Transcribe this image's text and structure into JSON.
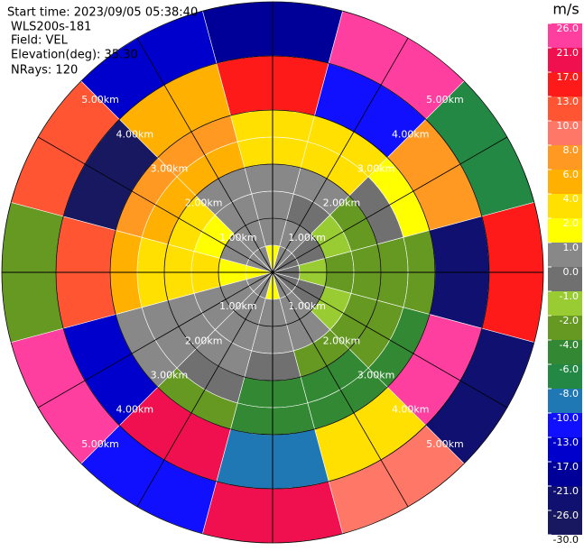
{
  "header": [
    "Start time: 2023/09/05 05:38:40",
    "WLS200s-181",
    "Field: VEL",
    "Elevation(deg): 35.30",
    "NRays: 120"
  ],
  "rings": [
    {
      "range": 1,
      "label": "1.00km"
    },
    {
      "range": 2,
      "label": "2.00km"
    },
    {
      "range": 3,
      "label": "3.00km"
    },
    {
      "range": 4,
      "label": "4.00km"
    },
    {
      "range": 5,
      "label": "5.00km"
    }
  ],
  "colorbar": {
    "unit": "m/s",
    "ticks": [
      {
        "value": 26,
        "label": "26.0"
      },
      {
        "value": 21,
        "label": "21.0"
      },
      {
        "value": 17,
        "label": "17.0"
      },
      {
        "value": 13,
        "label": "13.0"
      },
      {
        "value": 10,
        "label": "10.0"
      },
      {
        "value": 8,
        "label": "8.0"
      },
      {
        "value": 6,
        "label": "6.0"
      },
      {
        "value": 4,
        "label": "4.0"
      },
      {
        "value": 2,
        "label": "2.0"
      },
      {
        "value": 1,
        "label": "1.0"
      },
      {
        "value": 0,
        "label": "0.0"
      },
      {
        "value": -1,
        "label": "-1.0"
      },
      {
        "value": -2,
        "label": "-2.0"
      },
      {
        "value": -4,
        "label": "-4.0"
      },
      {
        "value": -6,
        "label": "-6.0"
      },
      {
        "value": -8,
        "label": "-8.0"
      },
      {
        "value": -10,
        "label": "-10.0"
      },
      {
        "value": -13,
        "label": "-13.0"
      },
      {
        "value": -17,
        "label": "-17.0"
      },
      {
        "value": -21,
        "label": "-21.0"
      },
      {
        "value": -26,
        "label": "-26.0"
      },
      {
        "value": -30,
        "label": "-30.0"
      }
    ],
    "colors": [
      "#ff3fa0",
      "#f01050",
      "#ff1a1a",
      "#ff5533",
      "#ff7766",
      "#ff9922",
      "#ffb000",
      "#ffe000",
      "#ffff00",
      "#888888",
      "#707070",
      "#99cc33",
      "#669922",
      "#338833",
      "#228844",
      "#1f77b4",
      "#1010ff",
      "#0000cc",
      "#000099",
      "#101070",
      "#181860"
    ]
  },
  "field": {
    "azimuth_step": 30,
    "gate_edges_km": [
      0,
      0.5,
      1,
      1.5,
      2,
      2.5,
      3,
      4,
      5
    ],
    "values": [
      [
        1.5,
        0.5,
        -0.5,
        -0.5,
        -0.5,
        0.5,
        1.5,
        0.5,
        0.5,
        1.5,
        0.5,
        0.5
      ],
      [
        0.5,
        0.5,
        -0.5,
        -1.5,
        -0.5,
        0.5,
        0.5,
        0.5,
        0.5,
        1.5,
        0.5,
        0.5
      ],
      [
        0.5,
        -0.5,
        -1.5,
        -2.5,
        -1.5,
        0.5,
        0.5,
        0.5,
        0.5,
        3,
        1.5,
        0.5
      ],
      [
        0.5,
        0.5,
        -2.5,
        -2.5,
        -3,
        -3,
        -0.5,
        0.5,
        0.5,
        3,
        3,
        0.5
      ],
      [
        3,
        3,
        -0.5,
        -2.5,
        -3,
        -5,
        -5,
        -0.5,
        0.5,
        3,
        5,
        5
      ],
      [
        3,
        3,
        1.5,
        -2.5,
        -5,
        -5,
        -5,
        -3,
        0.5,
        5,
        7,
        7
      ],
      [
        15,
        -12,
        7,
        -22,
        24,
        3,
        -9,
        19,
        -15,
        11,
        -28,
        5
      ],
      [
        -19,
        22,
        -7,
        14,
        -25,
        9,
        18,
        -11,
        27,
        -3,
        12,
        -16
      ]
    ]
  }
}
